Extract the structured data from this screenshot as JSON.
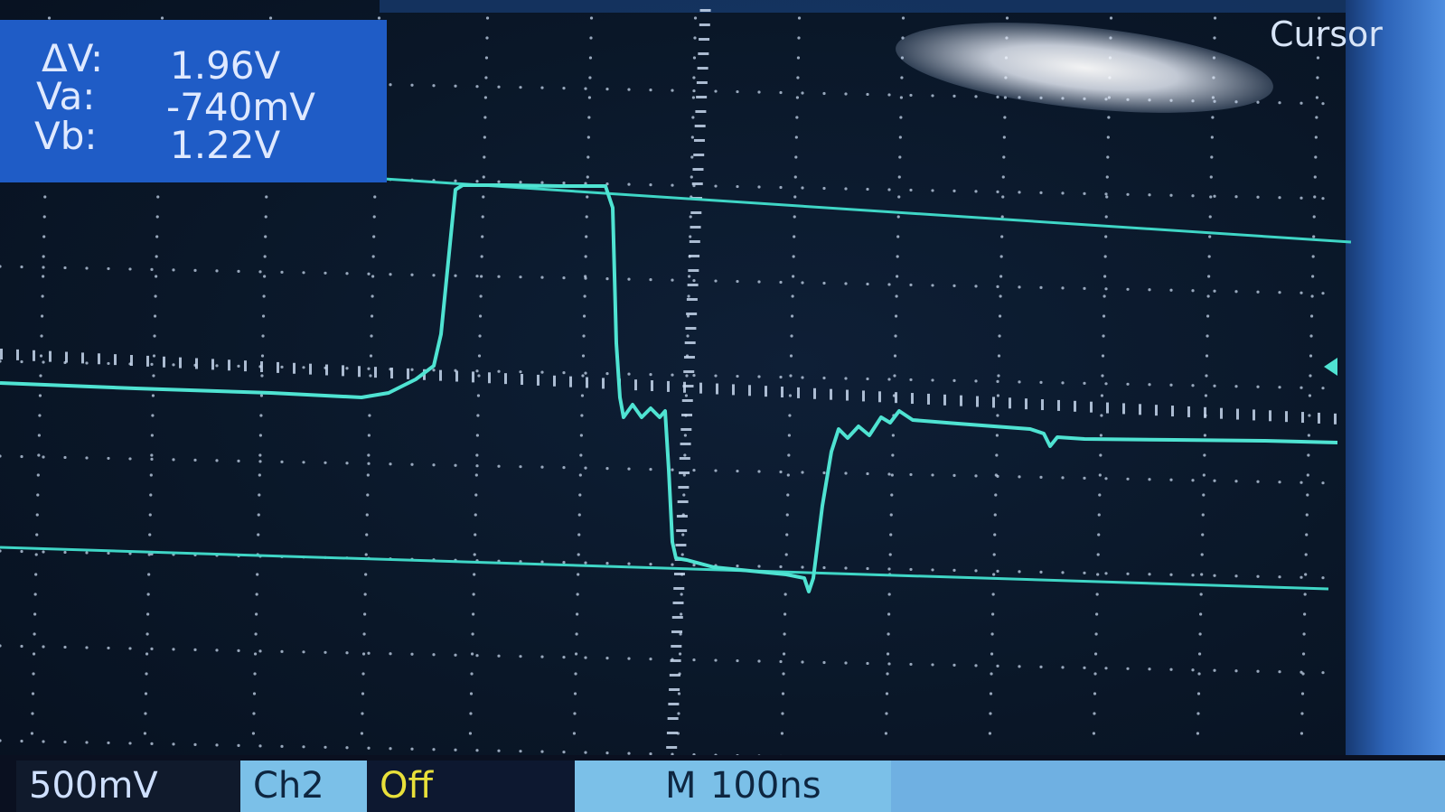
{
  "screen_label": "Cursor",
  "cursor_readout": {
    "delta_v_label": "ΔV:",
    "delta_v_value": "1.96V",
    "va_label": "Va:",
    "va_value": "-740mV",
    "vb_label": "Vb:",
    "vb_value": "1.22V"
  },
  "status_bar": {
    "volts_per_div": "500mV",
    "channel": "Ch2",
    "channel_state": "Off",
    "time_base_prefix": "M",
    "time_base": "100ns"
  },
  "colors": {
    "trace": "#4fe3d2",
    "cursor_line": "#3fd6c6",
    "grid": "#c8d8ee",
    "readout_bg": "#1f5cc6",
    "status_text_yellow": "#e8e03a"
  }
}
